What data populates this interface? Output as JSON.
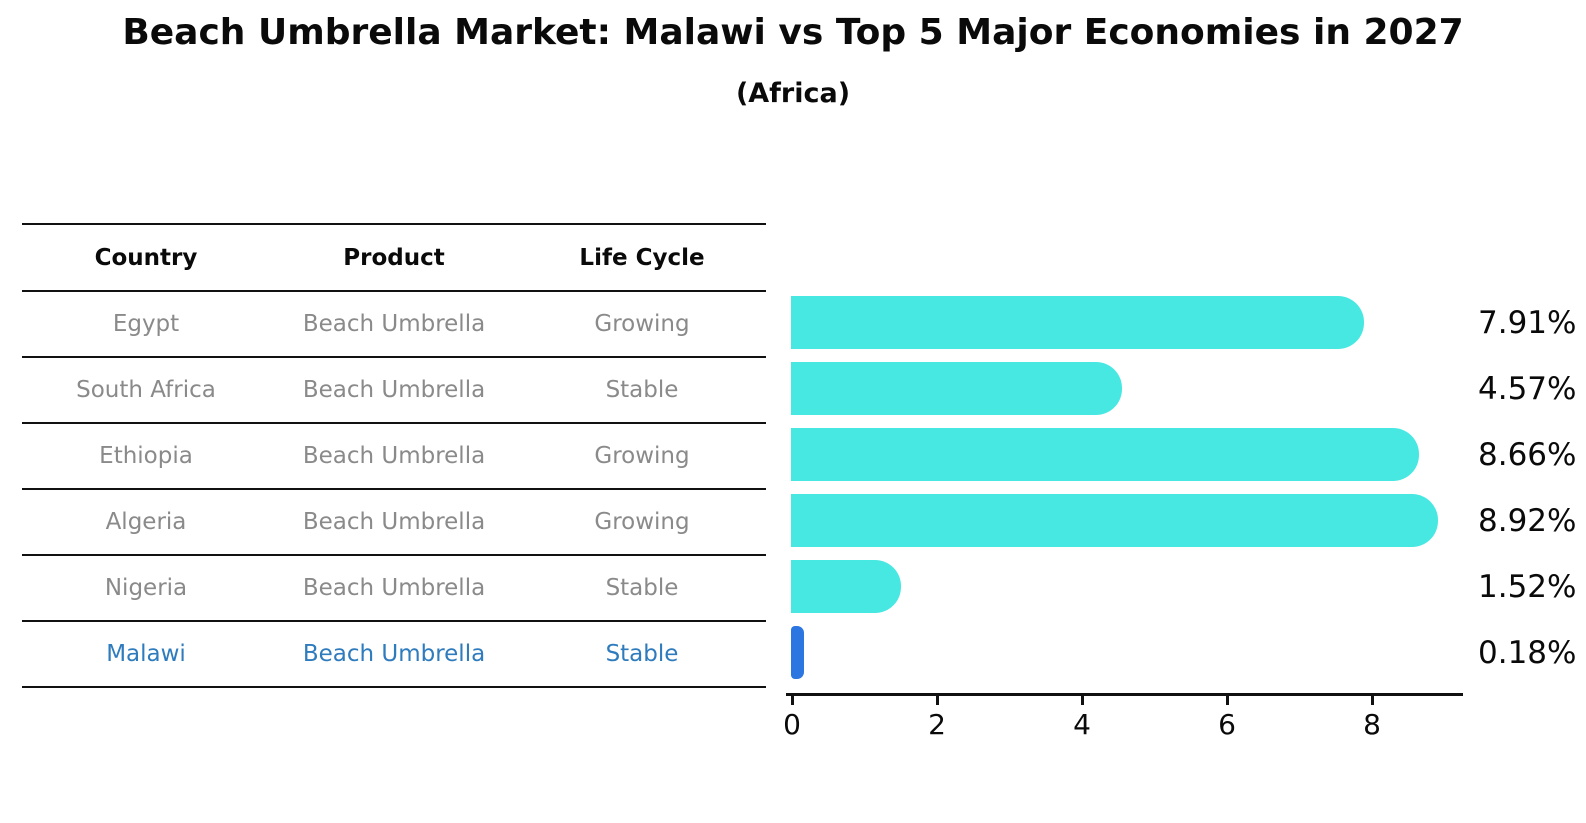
{
  "title": "Beach Umbrella Market: Malawi vs Top 5 Major Economies in 2027",
  "subtitle": "(Africa)",
  "table": {
    "headers": [
      "Country",
      "Product",
      "Life Cycle"
    ],
    "rows": [
      {
        "country": "Egypt",
        "product": "Beach Umbrella",
        "life_cycle": "Growing"
      },
      {
        "country": "South Africa",
        "product": "Beach Umbrella",
        "life_cycle": "Stable"
      },
      {
        "country": "Ethiopia",
        "product": "Beach Umbrella",
        "life_cycle": "Growing"
      },
      {
        "country": "Algeria",
        "product": "Beach Umbrella",
        "life_cycle": "Growing"
      },
      {
        "country": "Nigeria",
        "product": "Beach Umbrella",
        "life_cycle": "Stable"
      },
      {
        "country": "Malawi",
        "product": "Beach Umbrella",
        "life_cycle": "Stable"
      }
    ],
    "highlighted_row": "Malawi"
  },
  "chart_data": {
    "type": "bar",
    "orientation": "horizontal",
    "title": "Beach Umbrella Market: Malawi vs Top 5 Major Economies in 2027 (Africa)",
    "categories": [
      "Egypt",
      "South Africa",
      "Ethiopia",
      "Algeria",
      "Nigeria",
      "Malawi"
    ],
    "values": [
      7.91,
      4.57,
      8.66,
      8.92,
      1.52,
      0.18
    ],
    "value_labels": [
      "7.91%",
      "4.57%",
      "8.66%",
      "8.92%",
      "1.52%",
      "0.18%"
    ],
    "x_ticks": [
      0,
      2,
      4,
      6,
      8
    ],
    "xlim": [
      0,
      9.3
    ],
    "grid": false,
    "legend": false,
    "bar_colors": [
      "#47e8e2",
      "#47e8e2",
      "#47e8e2",
      "#47e8e2",
      "#47e8e2",
      "#2b76e0"
    ],
    "colors": {
      "default_bar": "#47e8e2",
      "highlight_bar": "#2b76e0",
      "highlight_text": "#2e7bbd",
      "table_text": "#8a8a8a",
      "axis": "#111111"
    }
  }
}
